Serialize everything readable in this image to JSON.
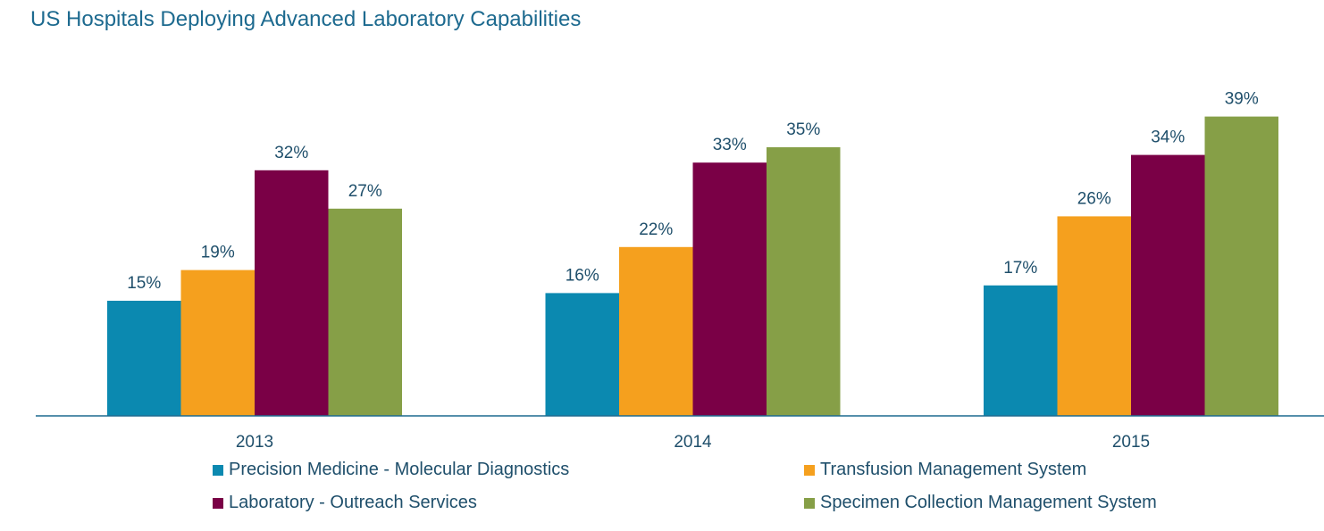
{
  "chart_data": {
    "type": "bar",
    "title": "US Hospitals Deploying Advanced Laboratory Capabilities",
    "categories": [
      "2013",
      "2014",
      "2015"
    ],
    "series": [
      {
        "name": "Precision Medicine - Molecular Diagnostics",
        "values": [
          15,
          16,
          17
        ],
        "labels": [
          "15%",
          "16%",
          "17%"
        ],
        "color": "#0b89b0"
      },
      {
        "name": "Transfusion Management System",
        "values": [
          19,
          22,
          26
        ],
        "labels": [
          "19%",
          "22%",
          "26%"
        ],
        "color": "#f5a01e"
      },
      {
        "name": "Laboratory - Outreach Services",
        "values": [
          32,
          33,
          34
        ],
        "labels": [
          "32%",
          "33%",
          "34%"
        ],
        "color": "#7a0046"
      },
      {
        "name": "Specimen Collection Management System",
        "values": [
          27,
          35,
          39
        ],
        "labels": [
          "27%",
          "35%",
          "39%"
        ],
        "color": "#869f47"
      }
    ],
    "unit": "%",
    "ylim": [
      0,
      40
    ],
    "grid": false,
    "legend_position": "bottom",
    "axis_color": "#1d6a8f"
  }
}
